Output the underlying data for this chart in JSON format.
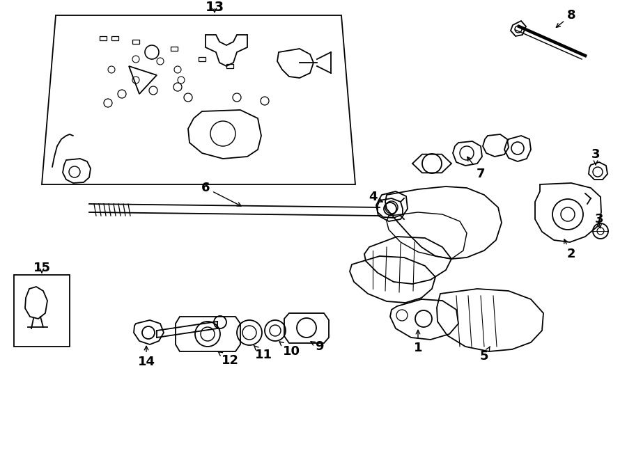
{
  "bg_color": "#ffffff",
  "line_color": "#000000",
  "fig_width": 9.0,
  "fig_height": 6.61,
  "dpi": 100,
  "lw": 1.3
}
